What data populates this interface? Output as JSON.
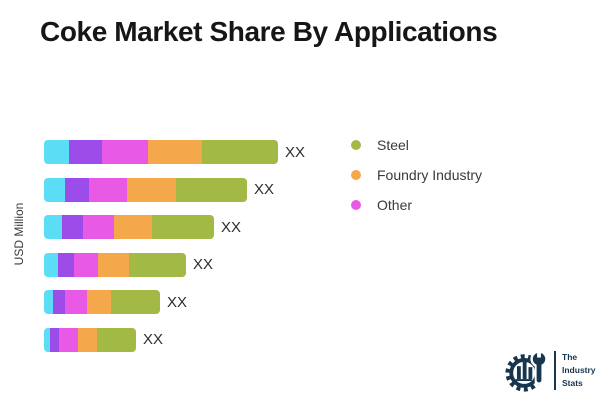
{
  "title": "Coke Market Share By Applications",
  "y_axis_label": "USD Million",
  "legend": {
    "position": "right",
    "items": [
      {
        "label": "Steel",
        "color": "#a2b945"
      },
      {
        "label": "Foundry Industry",
        "color": "#f4a84b"
      },
      {
        "label": "Other",
        "color": "#e85ae6"
      }
    ]
  },
  "chart_data": {
    "type": "bar",
    "orientation": "horizontal",
    "stacked": true,
    "title": "Coke Market Share By Applications",
    "ylabel": "USD Million",
    "xlabel": "",
    "grid": false,
    "categories": [
      "",
      "",
      "",
      "",
      "",
      ""
    ],
    "series": [
      {
        "name": "",
        "color": "#5bddf6",
        "values": [
          25,
          21,
          18,
          14,
          9,
          6
        ]
      },
      {
        "name": "",
        "color": "#9c4ce9",
        "values": [
          33,
          24,
          21,
          16,
          12,
          9
        ]
      },
      {
        "name": "Other",
        "color": "#e85ae6",
        "values": [
          46,
          38,
          31,
          24,
          22,
          19
        ]
      },
      {
        "name": "Foundry Industry",
        "color": "#f4a84b",
        "values": [
          54,
          49,
          38,
          31,
          24,
          19
        ]
      },
      {
        "name": "Steel",
        "color": "#a2b945",
        "values": [
          76,
          71,
          62,
          57,
          49,
          39
        ]
      }
    ],
    "bar_value_labels": [
      "XX",
      "XX",
      "XX",
      "XX",
      "XX",
      "XX"
    ],
    "note": "Numeric values are masked as 'XX' in the source image; series values are relative segment widths measured in pixels."
  },
  "logo": {
    "lines": [
      "The",
      "Industry",
      "Stats"
    ],
    "color": "#17354d"
  },
  "colors": {
    "background": "#ffffff",
    "title_text": "#161616",
    "axis_label_text": "#3a3a3a",
    "value_label_text": "#2e2e2e",
    "legend_text": "#3a3a3a"
  }
}
